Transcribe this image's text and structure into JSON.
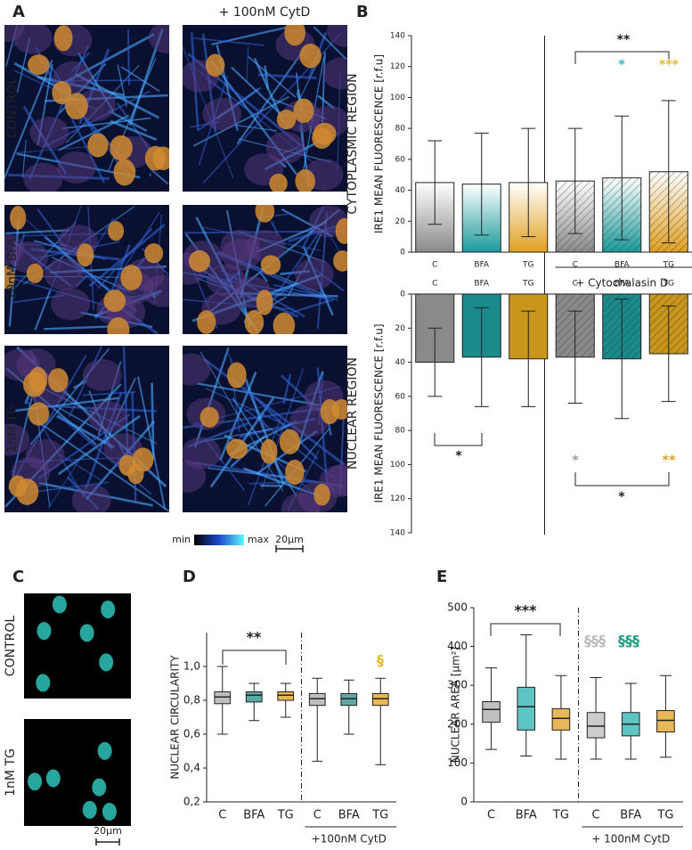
{
  "panel_labels": [
    "A",
    "B",
    "C",
    "D",
    "E"
  ],
  "panel_a": {
    "column_title": "+ 100nM CytD",
    "rows": [
      "CONTROL",
      "20nM BFA",
      "1nM TG"
    ],
    "colorbar": {
      "min": "min",
      "max": "max"
    },
    "scale_bar": "20µm"
  },
  "panel_c": {
    "rows": [
      "CONTROL",
      "1nM TG"
    ],
    "scale_bar": "20µm"
  },
  "chart_data": [
    {
      "type": "bar",
      "row_label": "CYTOPLASMIC REGION",
      "y_label": "IRE1 MEAN FLUORESCENCE [r.f.u]",
      "categories": [
        "C",
        "BFA",
        "TG",
        "C",
        "BFA",
        "TG"
      ],
      "group_label": "+ Cytochalasin D",
      "values": [
        45,
        44,
        45,
        46,
        48,
        52
      ],
      "errors": [
        27,
        33,
        35,
        34,
        40,
        46
      ],
      "colors": [
        "#8a8a8a",
        "#1a9a9a",
        "#e0a020",
        "#8a8a8a",
        "#1a9a9a",
        "#e0a020"
      ],
      "hatched": [
        false,
        false,
        false,
        true,
        true,
        true
      ],
      "fill": "gradient",
      "inverted": false,
      "ylim": [
        0,
        140
      ],
      "yticks": [
        0,
        20,
        40,
        60,
        80,
        100,
        120,
        140
      ],
      "annotations": [
        {
          "text": "**",
          "color": "#222222"
        },
        {
          "text": "*",
          "color": "#2ab5c5"
        },
        {
          "text": "***",
          "color": "#e8b830"
        }
      ]
    },
    {
      "type": "bar",
      "row_label": "NUCLEAR REGION",
      "y_label": "IRE1 MEAN FLUORESCENCE [r.f.u]",
      "categories": [
        "C",
        "BFA",
        "TG",
        "C",
        "BFA",
        "TG"
      ],
      "values": [
        40,
        37,
        38,
        37,
        38,
        35
      ],
      "errors": [
        20,
        29,
        28,
        27,
        35,
        28
      ],
      "colors": [
        "#8a8a8a",
        "#1a8a8a",
        "#c8961a",
        "#8a8a8a",
        "#1a8a8a",
        "#c8961a"
      ],
      "hatched": [
        false,
        false,
        false,
        true,
        true,
        true
      ],
      "fill": "solid",
      "inverted": true,
      "ylim": [
        0,
        140
      ],
      "yticks": [
        0,
        20,
        40,
        60,
        80,
        100,
        120,
        140
      ],
      "annotations": [
        {
          "text": "*",
          "color": "#222222"
        },
        {
          "text": "*",
          "color": "#999999"
        },
        {
          "text": "**",
          "color": "#d8a020"
        },
        {
          "text": "*",
          "color": "#222222"
        }
      ]
    },
    {
      "type": "box",
      "y_label": "NUCLEAR CIRCULARITY",
      "categories": [
        "C",
        "BFA",
        "TG",
        "C",
        "BFA",
        "TG"
      ],
      "group_label": "+100nM CytD",
      "stats": {
        "min": [
          0.6,
          0.68,
          0.7,
          0.44,
          0.6,
          0.42
        ],
        "q1": [
          0.78,
          0.79,
          0.8,
          0.77,
          0.77,
          0.77
        ],
        "median": [
          0.82,
          0.83,
          0.83,
          0.81,
          0.81,
          0.81
        ],
        "q3": [
          0.85,
          0.85,
          0.85,
          0.84,
          0.84,
          0.84
        ],
        "max": [
          1.0,
          0.9,
          0.9,
          0.93,
          0.92,
          0.93
        ]
      },
      "colors": [
        "#aaaaaa",
        "#2a8a8a",
        "#e0a020",
        "#aaaaaa",
        "#2a8a8a",
        "#e0a020"
      ],
      "ylim": [
        0.2,
        1.2
      ],
      "yticks": [
        {
          "value": 0.2,
          "label": "0,2"
        },
        {
          "value": 0.4,
          "label": "0,4"
        },
        {
          "value": 0.6,
          "label": "0,6"
        },
        {
          "value": 0.8,
          "label": "0,8"
        },
        {
          "value": 1.0,
          "label": "1,0"
        }
      ],
      "annotations": [
        {
          "text": "**",
          "color": "#222222"
        },
        {
          "text": "§",
          "color": "#e8b830"
        }
      ]
    },
    {
      "type": "box",
      "y_label": "NUCLEAR AREA [µm²]",
      "categories": [
        "C",
        "BFA",
        "TG",
        "C",
        "BFA",
        "TG"
      ],
      "group_label": "+ 100nM CytD",
      "stats": {
        "min": [
          135,
          118,
          110,
          110,
          110,
          115
        ],
        "q1": [
          205,
          185,
          185,
          165,
          170,
          180
        ],
        "median": [
          238,
          245,
          215,
          195,
          200,
          210
        ],
        "q3": [
          258,
          295,
          240,
          230,
          230,
          235
        ],
        "max": [
          345,
          430,
          325,
          320,
          305,
          325
        ]
      },
      "colors": [
        "#aaaaaa",
        "#2ab0b0",
        "#e0a020",
        "#bbbbbb",
        "#2ab0b0",
        "#e0a020"
      ],
      "ylim": [
        0,
        500
      ],
      "yticks": [
        0,
        100,
        200,
        300,
        400,
        500
      ],
      "annotations": [
        {
          "text": "***",
          "color": "#222222"
        },
        {
          "text": "§§§",
          "color": "#bbbbbb"
        },
        {
          "text": "§§§",
          "color": "#1aa080"
        }
      ]
    }
  ]
}
